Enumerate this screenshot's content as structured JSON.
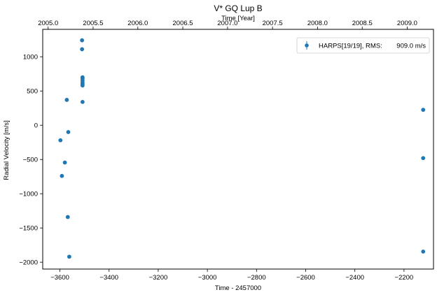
{
  "chart_data": {
    "type": "scatter",
    "title": "V* GQ Lup B",
    "xlabel": "Time - 2457000",
    "ylabel": "Radial Velocity [m/s]",
    "top_xlabel": "Time [Year]",
    "xlim": [
      -3670,
      -2080
    ],
    "ylim": [
      -2100,
      1400
    ],
    "x_ticks": [
      -3600,
      -3400,
      -3200,
      -3000,
      -2800,
      -2600,
      -2400,
      -2200
    ],
    "x_tick_labels": [
      "−3600",
      "−3400",
      "−3200",
      "−3000",
      "−2800",
      "−2600",
      "−2400",
      "−2200"
    ],
    "y_ticks": [
      -2000,
      -1500,
      -1000,
      -500,
      0,
      500,
      1000
    ],
    "y_tick_labels": [
      "−2000",
      "−1500",
      "−1000",
      "−500",
      "0",
      "500",
      "1000"
    ],
    "top_ticks": [
      2005.0,
      2005.5,
      2006.0,
      2006.5,
      2007.0,
      2007.5,
      2008.0,
      2008.5,
      2009.0
    ],
    "top_tick_labels": [
      "2005.0",
      "2005.5",
      "2006.0",
      "2006.5",
      "2007.0",
      "2007.5",
      "2008.0",
      "2008.5",
      "2009.0"
    ],
    "top_tick_positions_x": [
      -3648,
      -3465,
      -3283,
      -3100,
      -2918,
      -2735,
      -2552,
      -2370,
      -2187
    ],
    "legend": {
      "placement": "top-right",
      "label": "HARPS[19/19], RMS:",
      "rms_value": "909.0 m/s"
    },
    "grid": false,
    "color": "#1f77b4",
    "series": [
      {
        "x": [
          -3598,
          -3592,
          -3580,
          -3572,
          -3568,
          -3566,
          -3562,
          -3510,
          -3510,
          -3508,
          -3508,
          -3508,
          -3508,
          -3508,
          -3508,
          -3508,
          -2122,
          -2122,
          -2122
        ],
        "y": [
          -220,
          -740,
          -545,
          370,
          -1340,
          -100,
          -1920,
          1240,
          1110,
          700,
          680,
          650,
          620,
          600,
          580,
          340,
          225,
          -480,
          -1845
        ]
      }
    ]
  }
}
